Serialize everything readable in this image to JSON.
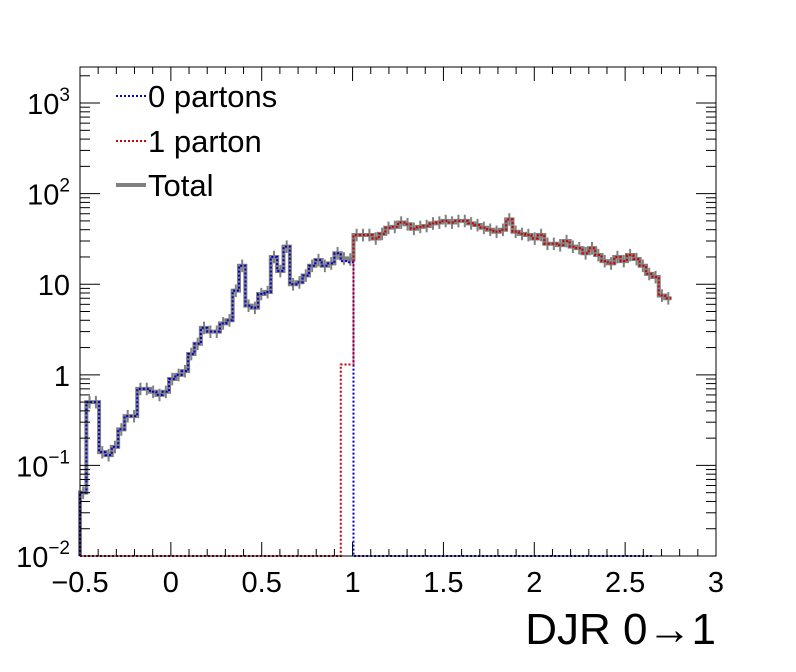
{
  "chart_data": {
    "type": "line",
    "title": "",
    "xlabel": "DJR 0→1",
    "ylabel": "",
    "xlim": [
      -0.5,
      3.0
    ],
    "ylim": [
      0.01,
      2500
    ],
    "yscale": "log",
    "grid": false,
    "legend_position": "top-left",
    "xticks": [
      "−0.5",
      "0",
      "0.5",
      "1",
      "1.5",
      "2",
      "2.5",
      "3"
    ],
    "xtick_values": [
      -0.5,
      0,
      0.5,
      1,
      1.5,
      2,
      2.5,
      3
    ],
    "yticks": [
      {
        "value": 0.01,
        "base": "10",
        "exp": "−2"
      },
      {
        "value": 0.1,
        "base": "10",
        "exp": "−1"
      },
      {
        "value": 1,
        "base": "1",
        "exp": ""
      },
      {
        "value": 10,
        "base": "10",
        "exp": ""
      },
      {
        "value": 100,
        "base": "10",
        "exp": "2"
      },
      {
        "value": 1000,
        "base": "10",
        "exp": "3"
      }
    ],
    "bin_width": 0.035,
    "x_start": -0.5,
    "series": [
      {
        "name": "0 partons",
        "color": "#0000cc",
        "style": "dotted",
        "values": [
          0.05,
          0.5,
          0.5,
          0.14,
          0.13,
          0.16,
          0.25,
          0.35,
          0.35,
          0.7,
          0.7,
          0.65,
          0.6,
          0.65,
          0.9,
          1.0,
          1.1,
          1.7,
          2.2,
          3.3,
          3.0,
          3.0,
          3.7,
          4.0,
          8.5,
          16,
          5.8,
          5.5,
          7.8,
          8.2,
          20,
          14,
          26,
          10,
          10.5,
          12.5,
          16,
          18.5,
          16,
          17,
          22,
          18,
          17.5,
          0.01,
          0.01,
          0.01,
          0.01,
          0.01,
          0.01,
          0.01,
          0.01,
          0.01,
          0.01,
          0.01,
          0.01,
          0.01,
          0.01,
          0.01,
          0.01,
          0.01,
          0.01,
          0.01,
          0.01,
          0.01,
          0.01,
          0.01,
          0.01,
          0.01,
          0.01,
          0.01,
          0.01,
          0.01,
          0.01,
          0.01,
          0.01,
          0.01,
          0.01,
          0.01,
          0.01,
          0.01,
          0.01,
          0.01,
          0.01,
          0.01,
          0.01,
          0.01,
          0.01,
          0.01,
          0.01,
          0.01
        ]
      },
      {
        "name": "1 parton",
        "color": "#cc0000",
        "style": "dotted",
        "values": [
          0.01,
          0.01,
          0.01,
          0.01,
          0.01,
          0.01,
          0.01,
          0.01,
          0.01,
          0.01,
          0.01,
          0.01,
          0.01,
          0.01,
          0.01,
          0.01,
          0.01,
          0.01,
          0.01,
          0.01,
          0.01,
          0.01,
          0.01,
          0.01,
          0.01,
          0.01,
          0.01,
          0.01,
          0.01,
          0.01,
          0.01,
          0.01,
          0.01,
          0.01,
          0.01,
          0.01,
          0.01,
          0.01,
          0.01,
          0.01,
          0.01,
          1.3,
          1.3,
          35,
          35,
          35,
          32,
          36,
          42,
          43,
          48,
          46,
          41,
          43,
          44,
          47,
          48,
          50,
          48,
          50,
          50,
          47,
          45,
          42,
          40,
          38,
          40,
          52,
          38,
          36,
          35,
          32,
          35,
          28,
          28,
          27,
          30,
          26,
          25,
          22,
          25,
          21,
          18,
          17,
          20,
          18,
          21,
          19,
          16,
          13,
          12,
          7.5,
          7
        ]
      },
      {
        "name": "Total",
        "color": "#808080",
        "style": "solid",
        "values": [
          0.05,
          0.5,
          0.5,
          0.14,
          0.13,
          0.16,
          0.25,
          0.35,
          0.35,
          0.7,
          0.7,
          0.65,
          0.6,
          0.65,
          0.9,
          1.0,
          1.1,
          1.7,
          2.2,
          3.3,
          3.0,
          3.0,
          3.7,
          4.0,
          8.5,
          16,
          5.8,
          5.5,
          7.8,
          8.2,
          20,
          14,
          26,
          10,
          10.5,
          12.5,
          16,
          18.5,
          16,
          17,
          22,
          19.3,
          18.8,
          35,
          35,
          35,
          32,
          36,
          42,
          43,
          48,
          46,
          41,
          43,
          44,
          47,
          48,
          50,
          48,
          50,
          50,
          47,
          45,
          42,
          40,
          38,
          40,
          52,
          38,
          36,
          35,
          32,
          35,
          28,
          28,
          27,
          30,
          26,
          25,
          22,
          25,
          21,
          18,
          17,
          20,
          18,
          21,
          19,
          16,
          13,
          12,
          7.5,
          7
        ]
      }
    ]
  }
}
